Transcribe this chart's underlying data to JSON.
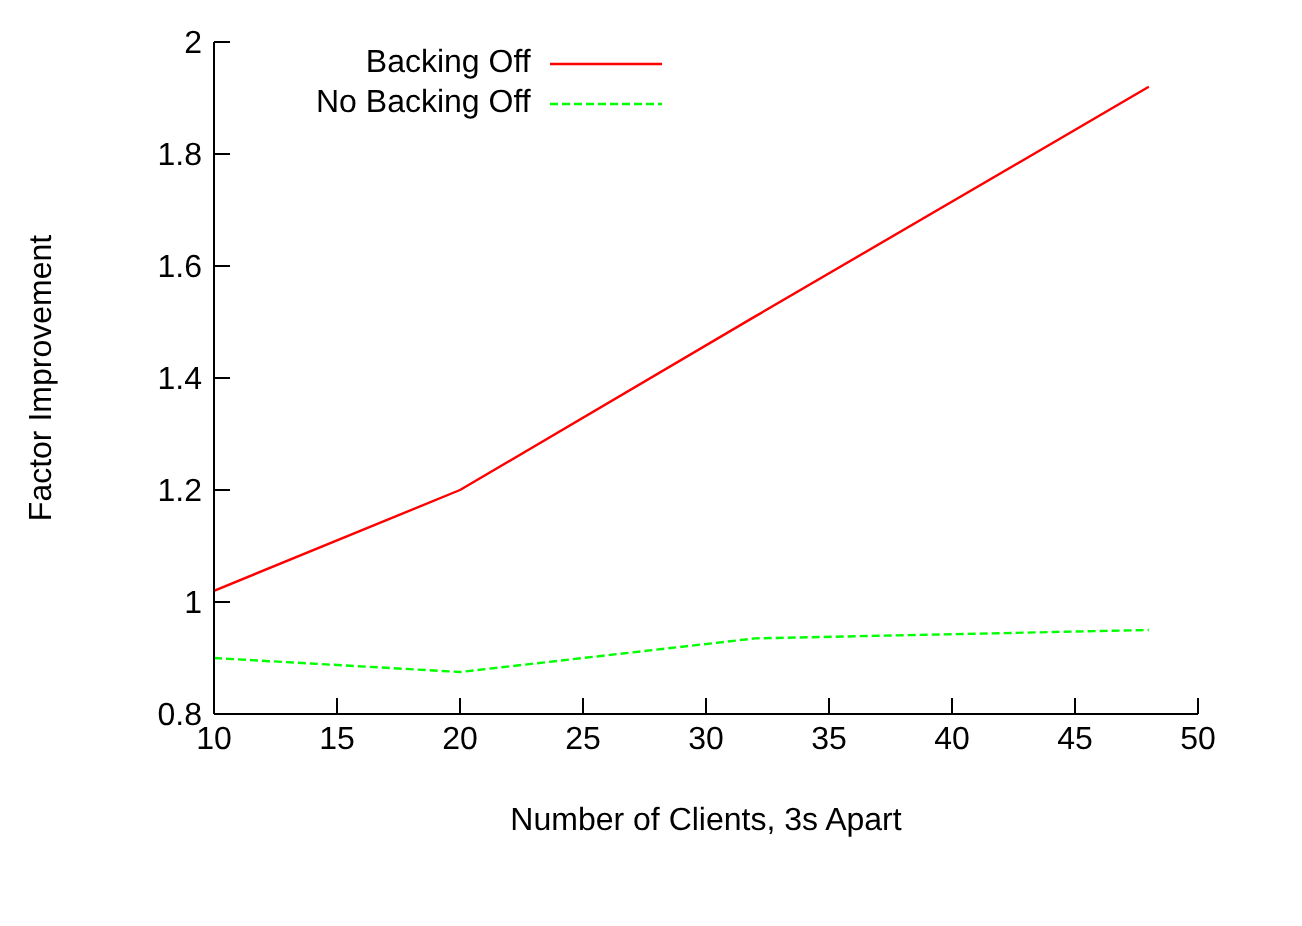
{
  "chart_data": {
    "type": "line",
    "xlabel": "Number of Clients, 3s Apart",
    "ylabel": "Factor Improvement",
    "x": [
      10,
      20,
      32,
      48
    ],
    "series": [
      {
        "name": "Backing Off",
        "color": "#ff0000",
        "values": [
          1.02,
          1.2,
          1.51,
          1.92
        ],
        "line_style": "solid"
      },
      {
        "name": "No Backing Off",
        "color": "#00ff00",
        "values": [
          0.9,
          0.875,
          0.935,
          0.95
        ],
        "line_style": "dashed"
      }
    ],
    "xlim": [
      10,
      50
    ],
    "xticks": [
      10,
      15,
      20,
      25,
      30,
      35,
      40,
      45,
      50
    ],
    "ylim": [
      0.8,
      2
    ],
    "yticks": [
      0.8,
      1,
      1.2,
      1.4,
      1.6,
      1.8,
      2
    ],
    "grid": false,
    "legend": "top left",
    "marker": "none"
  }
}
